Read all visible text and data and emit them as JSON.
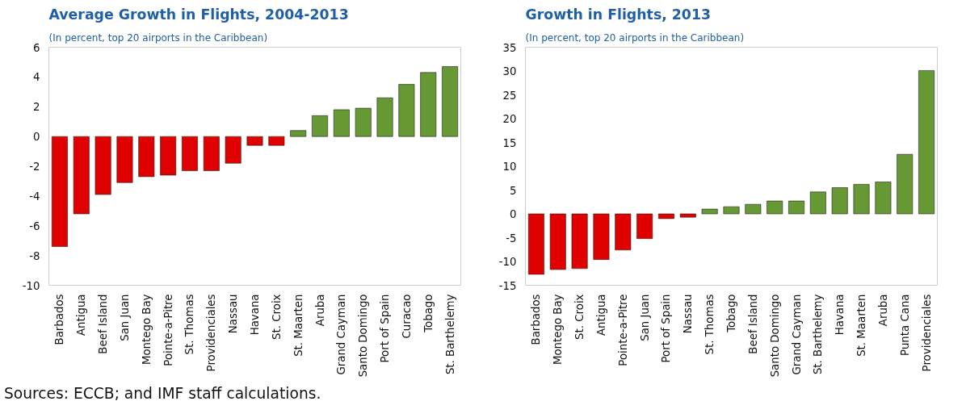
{
  "chart_data": [
    {
      "type": "bar",
      "title": "Average Growth in Flights, 2004-2013",
      "subtitle": "(In percent, top 20 airports in the Caribbean)",
      "categories": [
        "Barbados",
        "Antigua",
        "Beef Island",
        "San Juan",
        "Montego Bay",
        "Pointe-a-Pitre",
        "St. Thomas",
        "Providenciales",
        "Nassau",
        "Havana",
        "St. Croix",
        "St. Maarten",
        "Aruba",
        "Grand Cayman",
        "Santo Domingo",
        "Port of Spain",
        "Curacao",
        "Tobago",
        "St. Barthelemy"
      ],
      "values": [
        -7.4,
        -5.2,
        -3.9,
        -3.1,
        -2.7,
        -2.6,
        -2.3,
        -2.3,
        -1.8,
        -0.6,
        -0.6,
        0.4,
        1.4,
        1.8,
        1.9,
        2.6,
        3.5,
        4.3,
        4.7
      ],
      "colors": [
        "#e00000",
        "#e00000",
        "#e00000",
        "#e00000",
        "#e00000",
        "#e00000",
        "#e00000",
        "#e00000",
        "#e00000",
        "#e00000",
        "#e00000",
        "#669933",
        "#669933",
        "#669933",
        "#669933",
        "#669933",
        "#669933",
        "#669933",
        "#669933"
      ],
      "ylim": [
        -10,
        6
      ],
      "yticks": [
        -10,
        -8,
        -6,
        -4,
        -2,
        0,
        2,
        4,
        6
      ],
      "grid": false,
      "annotations": [
        "Sources: ECCB; and IMF staff calculations."
      ]
    },
    {
      "type": "bar",
      "title": "Growth in Flights, 2013",
      "subtitle": "(In percent, top 20 airports in the Caribbean)",
      "categories": [
        "Barbados",
        "Montego Bay",
        "St. Croix",
        "Antigua",
        "Pointe-a-Pitre",
        "San Juan",
        "Port of Spain",
        "Nassau",
        "St. Thomas",
        "Tobago",
        "Beef Island",
        "Santo Domingo",
        "Grand Cayman",
        "St. Barthelemy",
        "Havana",
        "St. Maarten",
        "Aruba",
        "Punta Cana",
        "Providenciales"
      ],
      "values": [
        -12.7,
        -11.7,
        -11.5,
        -9.6,
        -7.6,
        -5.2,
        -1.0,
        -0.7,
        1.0,
        1.5,
        2.0,
        2.7,
        2.7,
        4.6,
        5.5,
        6.2,
        6.7,
        12.5,
        30.1
      ],
      "colors": [
        "#e00000",
        "#e00000",
        "#e00000",
        "#e00000",
        "#e00000",
        "#e00000",
        "#e00000",
        "#e00000",
        "#669933",
        "#669933",
        "#669933",
        "#669933",
        "#669933",
        "#669933",
        "#669933",
        "#669933",
        "#669933",
        "#669933",
        "#669933"
      ],
      "ylim": [
        -15,
        35
      ],
      "yticks": [
        -15,
        -10,
        -5,
        0,
        5,
        10,
        15,
        20,
        25,
        30,
        35
      ],
      "grid": false
    }
  ]
}
